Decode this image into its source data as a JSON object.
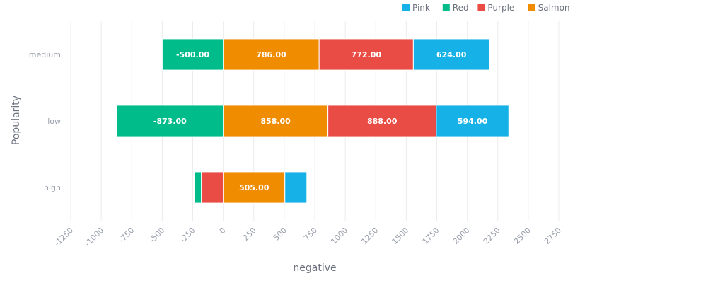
{
  "chart_data": {
    "type": "bar",
    "orientation": "horizontal",
    "stacked": true,
    "categories": [
      "medium",
      "low",
      "high"
    ],
    "series": [
      {
        "name": "Pink",
        "color": "#16b1e6",
        "values": [
          624,
          594,
          180
        ]
      },
      {
        "name": "Red",
        "color": "#00bb8a",
        "values": [
          -500,
          -873,
          -55
        ]
      },
      {
        "name": "Purple",
        "color": "#e84c45",
        "values": [
          772,
          888,
          -180
        ]
      },
      {
        "name": "Salmon",
        "color": "#f08c00",
        "values": [
          786,
          858,
          505
        ]
      }
    ],
    "stack_order": [
      "Salmon",
      "Purple",
      "Pink"
    ],
    "data_labels": [
      {
        "category": "medium",
        "series": "Red",
        "text": "-500.00"
      },
      {
        "category": "medium",
        "series": "Salmon",
        "text": "786.00"
      },
      {
        "category": "medium",
        "series": "Purple",
        "text": "772.00"
      },
      {
        "category": "medium",
        "series": "Pink",
        "text": "624.00"
      },
      {
        "category": "low",
        "series": "Red",
        "text": "-873.00"
      },
      {
        "category": "low",
        "series": "Salmon",
        "text": "858.00"
      },
      {
        "category": "low",
        "series": "Purple",
        "text": "888.00"
      },
      {
        "category": "low",
        "series": "Pink",
        "text": "594.00"
      },
      {
        "category": "high",
        "series": "Salmon",
        "text": "505.00"
      }
    ],
    "x_ticks": [
      "-1250",
      "-1000",
      "-750",
      "-500",
      "-250",
      "0",
      "250",
      "500",
      "750",
      "1000",
      "1250",
      "1500",
      "1750",
      "2000",
      "2250",
      "2500",
      "2750"
    ],
    "xlim": [
      -1250,
      2750
    ],
    "xlabel": "negative",
    "ylabel": "Popularity",
    "legend_position": "top-right",
    "grid": true
  }
}
